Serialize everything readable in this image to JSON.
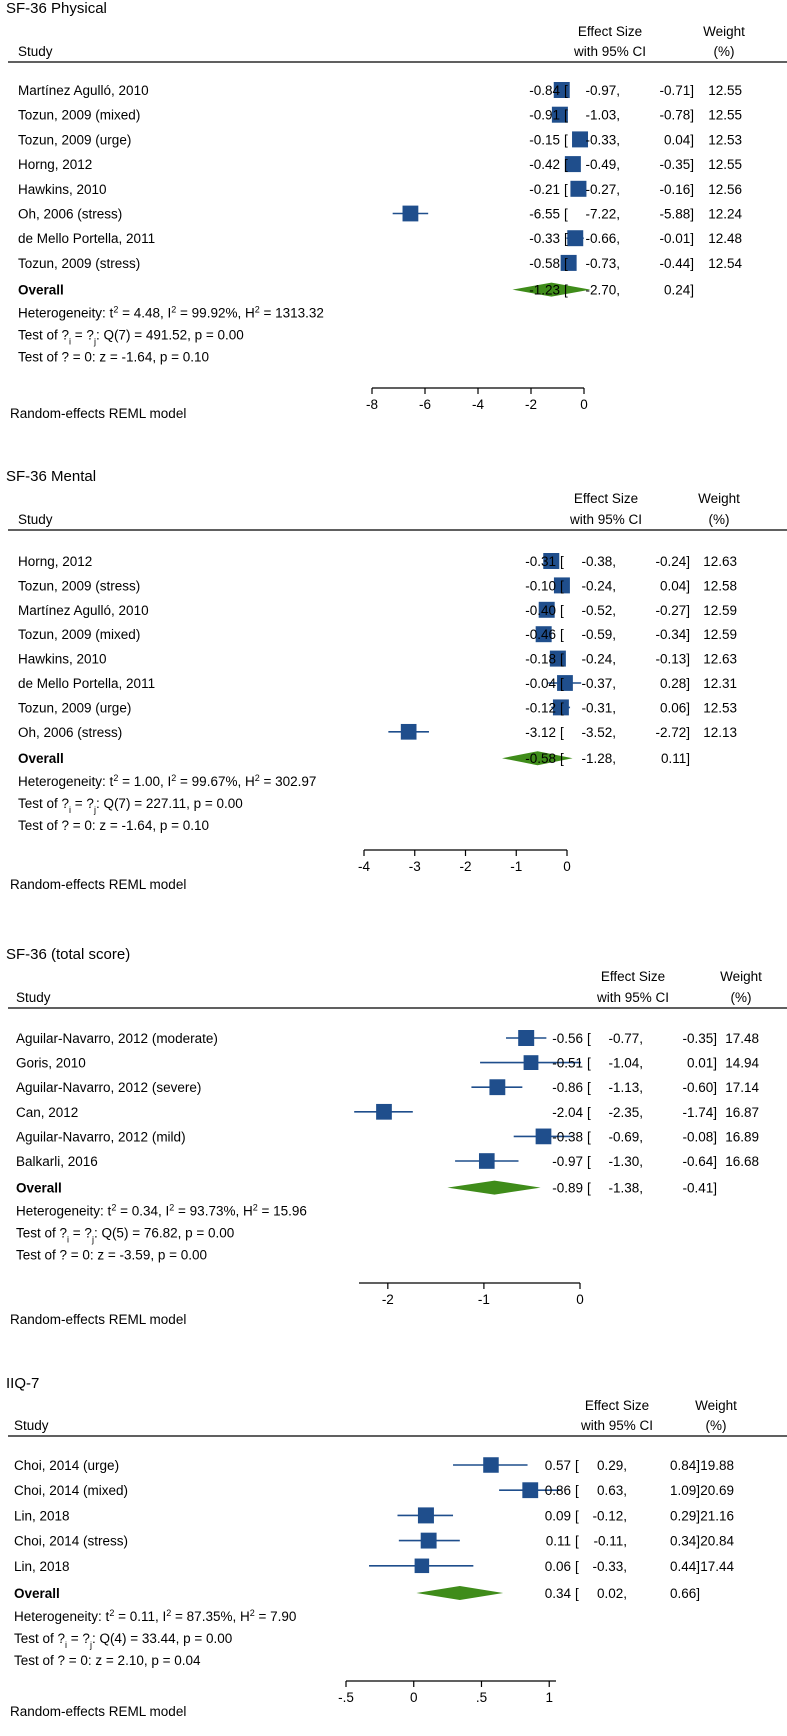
{
  "headers": {
    "study": "Study",
    "effect_line1": "Effect Size",
    "effect_line2": "with 95% CI",
    "weight_line1": "Weight",
    "weight_line2": "(%)",
    "overall": "Overall",
    "model": "Random-effects REML model"
  },
  "colors": {
    "square": "#1F4E8C",
    "diamond": "#3F8C1A",
    "axis": "#000000"
  },
  "chart_data": [
    {
      "type": "forest",
      "title": "SF-36 Physical",
      "xlim": [
        -8,
        0
      ],
      "ticks": [
        -8,
        -6,
        -4,
        -2,
        0
      ],
      "tick_labels": [
        "-8",
        "-6",
        "-4",
        "-2",
        "0"
      ],
      "studies": [
        {
          "label": "Martínez Agulló, 2010",
          "es": -0.84,
          "lo": -0.97,
          "hi": -0.71,
          "weight": 12.55,
          "es_text": "-0.84",
          "lo_text": "-0.97,",
          "hi_text": "-0.71]",
          "w_text": "12.55"
        },
        {
          "label": "Tozun, 2009 (mixed)",
          "es": -0.91,
          "lo": -1.03,
          "hi": -0.78,
          "weight": 12.55,
          "es_text": "-0.91",
          "lo_text": "-1.03,",
          "hi_text": "-0.78]",
          "w_text": "12.55"
        },
        {
          "label": "Tozun, 2009 (urge)",
          "es": -0.15,
          "lo": -0.33,
          "hi": 0.04,
          "weight": 12.53,
          "es_text": "-0.15",
          "lo_text": "-0.33,",
          "hi_text": "0.04]",
          "w_text": "12.53"
        },
        {
          "label": "Horng, 2012",
          "es": -0.42,
          "lo": -0.49,
          "hi": -0.35,
          "weight": 12.55,
          "es_text": "-0.42",
          "lo_text": "-0.49,",
          "hi_text": "-0.35]",
          "w_text": "12.55"
        },
        {
          "label": "Hawkins, 2010",
          "es": -0.21,
          "lo": -0.27,
          "hi": -0.16,
          "weight": 12.56,
          "es_text": "-0.21",
          "lo_text": "-0.27,",
          "hi_text": "-0.16]",
          "w_text": "12.56"
        },
        {
          "label": "Oh, 2006 (stress)",
          "es": -6.55,
          "lo": -7.22,
          "hi": -5.88,
          "weight": 12.24,
          "es_text": "-6.55",
          "lo_text": "-7.22,",
          "hi_text": "-5.88]",
          "w_text": "12.24"
        },
        {
          "label": "de Mello Portella, 2011",
          "es": -0.33,
          "lo": -0.66,
          "hi": -0.01,
          "weight": 12.48,
          "es_text": "-0.33",
          "lo_text": "-0.66,",
          "hi_text": "-0.01]",
          "w_text": "12.48"
        },
        {
          "label": "Tozun, 2009 (stress)",
          "es": -0.58,
          "lo": -0.73,
          "hi": -0.44,
          "weight": 12.54,
          "es_text": "-0.58",
          "lo_text": "-0.73,",
          "hi_text": "-0.44]",
          "w_text": "12.54"
        }
      ],
      "overall": {
        "es": -1.23,
        "lo": -2.7,
        "hi": 0.24,
        "es_text": "-1.23",
        "lo_text": "-2.70,",
        "hi_text": "0.24]"
      },
      "heterogeneity": {
        "tau2": "4.48",
        "i2": "99.92%",
        "h2": "1313.32"
      },
      "q_text": ": Q(7) = 491.52, p = 0.00",
      "z_text": "Test of ? = 0: z = -1.64, p = 0.10"
    },
    {
      "type": "forest",
      "title": "SF-36 Mental",
      "xlim": [
        -4,
        0
      ],
      "ticks": [
        -4,
        -3,
        -2,
        -1,
        0
      ],
      "tick_labels": [
        "-4",
        "-3",
        "-2",
        "-1",
        "0"
      ],
      "studies": [
        {
          "label": "Horng, 2012",
          "es": -0.31,
          "lo": -0.38,
          "hi": -0.24,
          "weight": 12.63,
          "es_text": "-0.31",
          "lo_text": "-0.38,",
          "hi_text": "-0.24]",
          "w_text": "12.63"
        },
        {
          "label": "Tozun, 2009 (stress)",
          "es": -0.1,
          "lo": -0.24,
          "hi": 0.04,
          "weight": 12.58,
          "es_text": "-0.10",
          "lo_text": "-0.24,",
          "hi_text": "0.04]",
          "w_text": "12.58"
        },
        {
          "label": "Martínez Agulló, 2010",
          "es": -0.4,
          "lo": -0.52,
          "hi": -0.27,
          "weight": 12.59,
          "es_text": "-0.40",
          "lo_text": "-0.52,",
          "hi_text": "-0.27]",
          "w_text": "12.59"
        },
        {
          "label": "Tozun, 2009 (mixed)",
          "es": -0.46,
          "lo": -0.59,
          "hi": -0.34,
          "weight": 12.59,
          "es_text": "-0.46",
          "lo_text": "-0.59,",
          "hi_text": "-0.34]",
          "w_text": "12.59"
        },
        {
          "label": "Hawkins, 2010",
          "es": -0.18,
          "lo": -0.24,
          "hi": -0.13,
          "weight": 12.63,
          "es_text": "-0.18",
          "lo_text": "-0.24,",
          "hi_text": "-0.13]",
          "w_text": "12.63"
        },
        {
          "label": "de Mello Portella, 2011",
          "es": -0.04,
          "lo": -0.37,
          "hi": 0.28,
          "weight": 12.31,
          "es_text": "-0.04",
          "lo_text": "-0.37,",
          "hi_text": "0.28]",
          "w_text": "12.31"
        },
        {
          "label": "Tozun, 2009 (urge)",
          "es": -0.12,
          "lo": -0.31,
          "hi": 0.06,
          "weight": 12.53,
          "es_text": "-0.12",
          "lo_text": "-0.31,",
          "hi_text": "0.06]",
          "w_text": "12.53"
        },
        {
          "label": "Oh, 2006 (stress)",
          "es": -3.12,
          "lo": -3.52,
          "hi": -2.72,
          "weight": 12.13,
          "es_text": "-3.12",
          "lo_text": "-3.52,",
          "hi_text": "-2.72]",
          "w_text": "12.13"
        }
      ],
      "overall": {
        "es": -0.58,
        "lo": -1.28,
        "hi": 0.11,
        "es_text": "-0.58",
        "lo_text": "-1.28,",
        "hi_text": "0.11]"
      },
      "heterogeneity": {
        "tau2": "1.00",
        "i2": "99.67%",
        "h2": "302.97"
      },
      "q_text": ": Q(7) = 227.11, p = 0.00",
      "z_text": "Test of ? = 0: z = -1.64, p = 0.10"
    },
    {
      "type": "forest",
      "title": "SF-36 (total score)",
      "xlim": [
        -2.3,
        0
      ],
      "ticks": [
        -2,
        -1,
        0
      ],
      "tick_labels": [
        "-2",
        "-1",
        "0"
      ],
      "studies": [
        {
          "label": "Aguilar-Navarro, 2012 (moderate)",
          "es": -0.56,
          "lo": -0.77,
          "hi": -0.35,
          "weight": 17.48,
          "es_text": "-0.56",
          "lo_text": "-0.77,",
          "hi_text": "-0.35]",
          "w_text": "17.48"
        },
        {
          "label": "Goris, 2010",
          "es": -0.51,
          "lo": -1.04,
          "hi": 0.01,
          "weight": 14.94,
          "es_text": "-0.51",
          "lo_text": "-1.04,",
          "hi_text": "0.01]",
          "w_text": "14.94"
        },
        {
          "label": "Aguilar-Navarro, 2012 (severe)",
          "es": -0.86,
          "lo": -1.13,
          "hi": -0.6,
          "weight": 17.14,
          "es_text": "-0.86",
          "lo_text": "-1.13,",
          "hi_text": "-0.60]",
          "w_text": "17.14"
        },
        {
          "label": "Can, 2012",
          "es": -2.04,
          "lo": -2.35,
          "hi": -1.74,
          "weight": 16.87,
          "es_text": "-2.04",
          "lo_text": "-2.35,",
          "hi_text": "-1.74]",
          "w_text": "16.87"
        },
        {
          "label": "Aguilar-Navarro, 2012 (mild)",
          "es": -0.38,
          "lo": -0.69,
          "hi": -0.08,
          "weight": 16.89,
          "es_text": "-0.38",
          "lo_text": "-0.69,",
          "hi_text": "-0.08]",
          "w_text": "16.89"
        },
        {
          "label": "Balkarli, 2016",
          "es": -0.97,
          "lo": -1.3,
          "hi": -0.64,
          "weight": 16.68,
          "es_text": "-0.97",
          "lo_text": "-1.30,",
          "hi_text": "-0.64]",
          "w_text": "16.68"
        }
      ],
      "overall": {
        "es": -0.89,
        "lo": -1.38,
        "hi": -0.41,
        "es_text": "-0.89",
        "lo_text": "-1.38,",
        "hi_text": "-0.41]"
      },
      "heterogeneity": {
        "tau2": "0.34",
        "i2": "93.73%",
        "h2": "15.96"
      },
      "q_text": ": Q(5) = 76.82, p = 0.00",
      "z_text": "Test of ? = 0: z = -3.59, p = 0.00"
    },
    {
      "type": "forest",
      "title": "IIQ-7",
      "xlim": [
        -0.5,
        1.05
      ],
      "ticks": [
        -0.5,
        0,
        0.5,
        1
      ],
      "tick_labels": [
        "-.5",
        "0",
        ".5",
        "1"
      ],
      "studies": [
        {
          "label": "Choi, 2014 (urge)",
          "es": 0.57,
          "lo": 0.29,
          "hi": 0.84,
          "weight": 19.88,
          "es_text": "0.57",
          "lo_text": "0.29,",
          "hi_text": "0.84]",
          "w_text": "19.88"
        },
        {
          "label": "Choi, 2014 (mixed)",
          "es": 0.86,
          "lo": 0.63,
          "hi": 1.09,
          "weight": 20.69,
          "es_text": "0.86",
          "lo_text": "0.63,",
          "hi_text": "1.09]",
          "w_text": "20.69"
        },
        {
          "label": "Lin, 2018",
          "es": 0.09,
          "lo": -0.12,
          "hi": 0.29,
          "weight": 21.16,
          "es_text": "0.09",
          "lo_text": "-0.12,",
          "hi_text": "0.29]",
          "w_text": "21.16"
        },
        {
          "label": "Choi, 2014 (stress)",
          "es": 0.11,
          "lo": -0.11,
          "hi": 0.34,
          "weight": 20.84,
          "es_text": "0.11",
          "lo_text": "-0.11,",
          "hi_text": "0.34]",
          "w_text": "20.84"
        },
        {
          "label": "Lin, 2018",
          "es": 0.06,
          "lo": -0.33,
          "hi": 0.44,
          "weight": 17.44,
          "es_text": "0.06",
          "lo_text": "-0.33,",
          "hi_text": "0.44]",
          "w_text": "17.44"
        }
      ],
      "overall": {
        "es": 0.34,
        "lo": 0.02,
        "hi": 0.66,
        "es_text": "0.34",
        "lo_text": "0.02,",
        "hi_text": "0.66]"
      },
      "heterogeneity": {
        "tau2": "0.11",
        "i2": "87.35%",
        "h2": "7.90"
      },
      "q_text": ": Q(4) = 33.44, p = 0.00",
      "z_text": "Test of ? = 0: z = 2.10, p = 0.04"
    }
  ]
}
